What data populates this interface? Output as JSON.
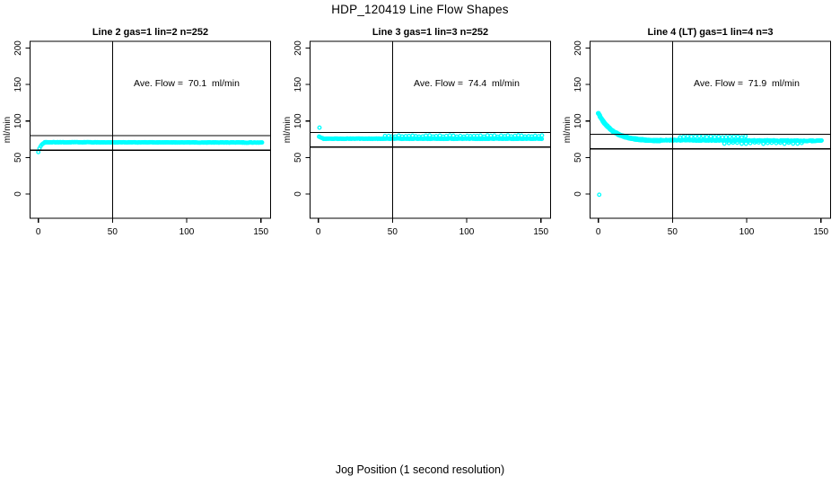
{
  "figure": {
    "title": "HDP_120419  Line Flow Shapes",
    "xlabel": "Jog Position (1 second resolution)",
    "background": "#ffffff",
    "point_color": "#00ffff",
    "axis_color": "#000000"
  },
  "chart_data": {
    "type": "scatter",
    "title": "HDP_120419  Line Flow Shapes",
    "xlabel": "Jog Position (1 second resolution)",
    "ylabel": "ml/min",
    "grid": false,
    "xticks": [
      0,
      50,
      100,
      150
    ],
    "yticks": [
      0,
      50,
      100,
      150,
      200
    ],
    "xlim": [
      -6,
      157
    ],
    "ylim": [
      -33,
      207
    ],
    "panels": [
      {
        "title": "Line 2 gas=1 lin=2 n=252",
        "ave_flow": 70.1,
        "annotation": "Ave. Flow =  70.1  ml/min",
        "hlines": [
          80.1,
          60.1
        ],
        "vline": 50,
        "series": [
          {
            "points": [
              [
                0,
                57.5
              ],
              [
                0.8,
                62.5
              ],
              [
                1.6,
                65.5
              ],
              [
                2.4,
                67.8
              ],
              [
                3.2,
                69.2
              ],
              [
                4,
                70
              ]
            ]
          },
          {
            "band": {
              "x0": 4.5,
              "x1": 151,
              "y": 70.9,
              "step": 0.6,
              "jitter": 0.3,
              "drift": -0.4
            }
          }
        ]
      },
      {
        "title": "Line 3 gas=1 lin=3 n=252",
        "ave_flow": 74.4,
        "annotation": "Ave. Flow =  74.4  ml/min",
        "hlines": [
          84.4,
          64.4
        ],
        "vline": 50,
        "series": [
          {
            "points": [
              [
                0.8,
                91
              ],
              [
                0.5,
                78.6
              ],
              [
                1.3,
                77.8
              ],
              [
                2.1,
                77
              ],
              [
                3,
                76.4
              ]
            ]
          },
          {
            "band": {
              "x0": 3.5,
              "x1": 151,
              "y": 75.8,
              "step": 0.6,
              "jitter": 0.35,
              "drift": 0
            }
          },
          {
            "band": {
              "x0": 45,
              "x1": 151,
              "y": 79.5,
              "step": 2.3,
              "jitter": 1.0,
              "drift": 0
            }
          }
        ]
      },
      {
        "title": "Line 4 (LT) gas=1 lin=4 n=3",
        "ave_flow": 71.9,
        "annotation": "Ave. Flow =  71.9  ml/min",
        "hlines": [
          81.9,
          61.9
        ],
        "vline": 50,
        "series": [
          {
            "points": [
              [
                0.6,
                -1
              ]
            ]
          },
          {
            "decay": {
              "x0": 0,
              "x1": 42,
              "y_inf": 72.6,
              "amp": 38,
              "tau": 9.5,
              "step": 0.4,
              "copies": 3,
              "jitter": 0.8
            }
          },
          {
            "band": {
              "x0": 42,
              "x1": 151,
              "y": 73.8,
              "step": 0.6,
              "jitter": 0.6,
              "drift": -1.0
            }
          },
          {
            "band": {
              "x0": 55,
              "x1": 100,
              "y": 78.5,
              "step": 2.6,
              "jitter": 1.0,
              "drift": 0
            }
          },
          {
            "band": {
              "x0": 85,
              "x1": 140,
              "y": 69.8,
              "step": 2.9,
              "jitter": 0.9,
              "drift": 0
            }
          }
        ]
      }
    ]
  }
}
